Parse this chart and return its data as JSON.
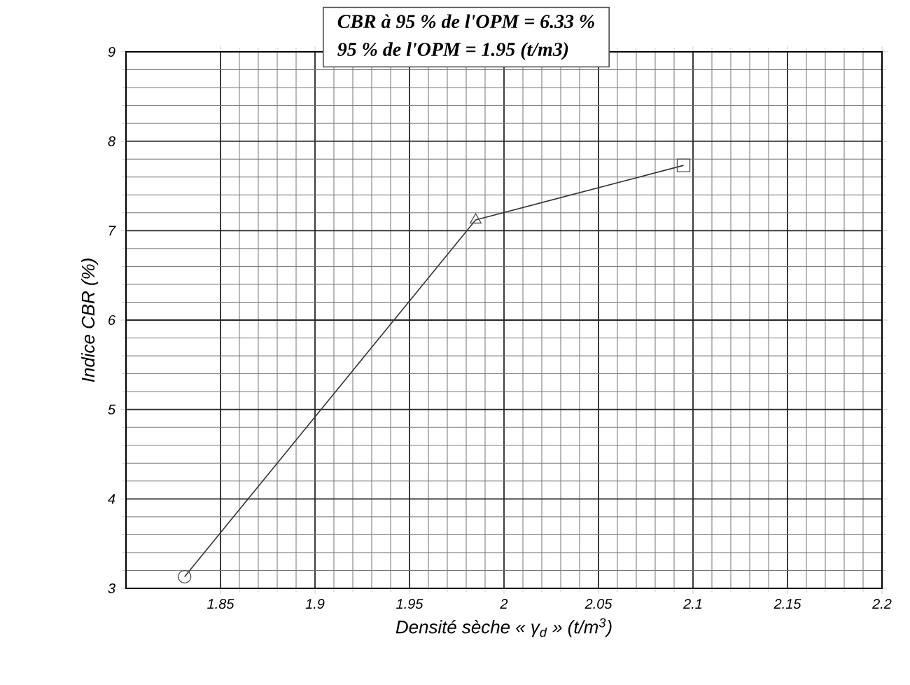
{
  "chart_data": {
    "type": "line",
    "xlabel": "Densité sèche « γ$_{d}$ » (t/m$^{3}$)",
    "ylabel": "Indice CBR (%)",
    "annotations": [
      "CBR à 95 % de l'OPM = 6.33 %",
      "95 % de l'OPM = 1.95 (t/m3)"
    ],
    "series": [
      {
        "color": "#333333",
        "x": [
          1.831,
          1.985,
          2.095
        ],
        "values": [
          3.13,
          7.12,
          7.73
        ]
      },
      {
        "type": "scatter",
        "marker": "circle",
        "color": "#555555",
        "x": [
          1.831
        ],
        "values": [
          3.13
        ]
      },
      {
        "type": "scatter",
        "marker": "triangle",
        "color": "#555555",
        "x": [
          1.985
        ],
        "values": [
          7.12
        ]
      },
      {
        "type": "scatter",
        "marker": "square",
        "color": "#555555",
        "x": [
          2.095
        ],
        "values": [
          7.73
        ]
      }
    ],
    "xlim": [
      1.8,
      2.2
    ],
    "xticks": [
      1.85,
      1.9,
      1.95,
      2,
      2.05,
      2.1,
      2.15,
      2.2
    ],
    "ylim": [
      3,
      9
    ],
    "yticks": [
      3,
      4,
      5,
      6,
      7,
      8,
      9
    ],
    "grid": true,
    "marker": "none"
  }
}
